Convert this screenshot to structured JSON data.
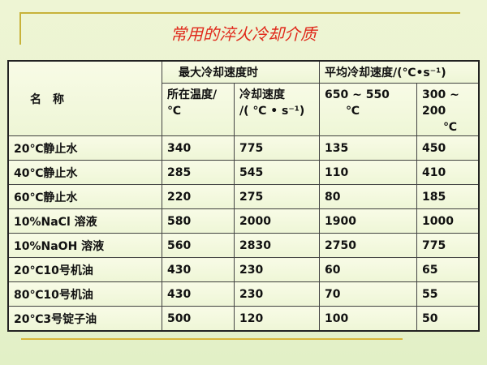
{
  "title": "常用的淬火冷却介质",
  "table": {
    "header": {
      "name": "名　称",
      "group1": "最大冷却速度时",
      "group2": "平均冷却速度/(℃•s⁻¹)",
      "col1": [
        "所在温度/",
        "℃"
      ],
      "col2": [
        "冷却速度",
        "/( ℃ • s⁻¹)"
      ],
      "col3": [
        "650 ~ 550",
        "℃"
      ],
      "col4": [
        "300 ~ 200",
        "℃"
      ]
    },
    "rows": [
      [
        "20℃静止水",
        "340",
        "775",
        "135",
        "450"
      ],
      [
        "40℃静止水",
        "285",
        "545",
        "110",
        "410"
      ],
      [
        "60℃静止水",
        "220",
        "275",
        "80",
        "185"
      ],
      [
        "10%NaCl 溶液",
        "580",
        "2000",
        "1900",
        "1000"
      ],
      [
        "10%NaOH 溶液",
        "560",
        "2830",
        "2750",
        "775"
      ],
      [
        "20℃10号机油",
        "430",
        "230",
        "60",
        "65"
      ],
      [
        "80℃10号机油",
        "430",
        "230",
        "70",
        "55"
      ],
      [
        "20℃3号锭子油",
        "500",
        "120",
        "100",
        "50"
      ]
    ]
  }
}
